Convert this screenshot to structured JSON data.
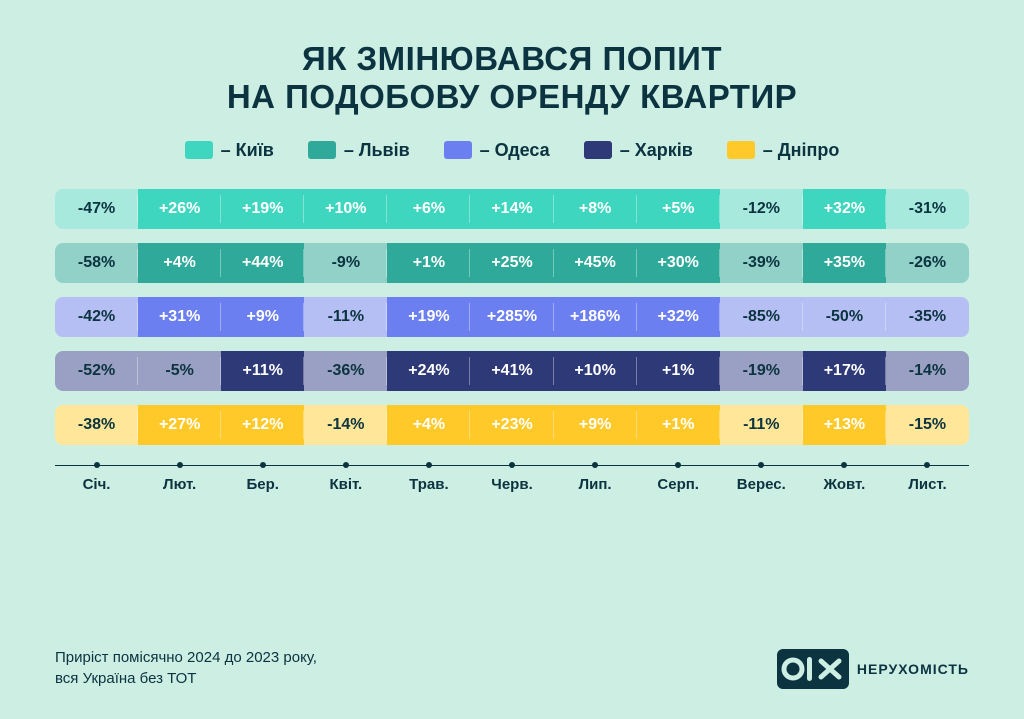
{
  "style": {
    "background_color": "#cdeee3",
    "text_color": "#0b3340",
    "title_fontsize": 33,
    "legend_fontsize": 18,
    "cell_fontsize": 16,
    "tick_fontsize": 15,
    "footnote_fontsize": 15,
    "brand_sub_fontsize": 14,
    "cell_text_color": "#ffffff",
    "light_cell_text_color": "#0b3340",
    "axis_color": "#0b3340"
  },
  "title_line1": "ЯК ЗМІНЮВАВСЯ ПОПИТ",
  "title_line2": "НА ПОДОБОВУ ОРЕНДУ КВАРТИР",
  "legend": [
    {
      "label": "– Київ",
      "color": "#3fd6c0",
      "light": "#a8e9dd"
    },
    {
      "label": "– Львів",
      "color": "#2fa99a",
      "light": "#91d1c7"
    },
    {
      "label": "– Одеса",
      "color": "#6b7ff0",
      "light": "#b6bff3"
    },
    {
      "label": "– Харків",
      "color": "#2e3a78",
      "light": "#9aa0c3"
    },
    {
      "label": "– Дніпро",
      "color": "#ffc929",
      "light": "#ffe698"
    }
  ],
  "months": [
    "Січ.",
    "Лют.",
    "Бер.",
    "Квіт.",
    "Трав.",
    "Черв.",
    "Лип.",
    "Серп.",
    "Верес.",
    "Жовт.",
    "Лист."
  ],
  "series": [
    {
      "name": "kyiv",
      "strong_color": "#3fd6c0",
      "light_color": "#a8e9dd",
      "values": [
        "-47%",
        "+26%",
        "+19%",
        "+10%",
        "+6%",
        "+14%",
        "+8%",
        "+5%",
        "-12%",
        "+32%",
        "-31%"
      ]
    },
    {
      "name": "lviv",
      "strong_color": "#2fa99a",
      "light_color": "#91d1c7",
      "values": [
        "-58%",
        "+4%",
        "+44%",
        "-9%",
        "+1%",
        "+25%",
        "+45%",
        "+30%",
        "-39%",
        "+35%",
        "-26%"
      ]
    },
    {
      "name": "odesa",
      "strong_color": "#6b7ff0",
      "light_color": "#b6bff3",
      "values": [
        "-42%",
        "+31%",
        "+9%",
        "-11%",
        "+19%",
        "+285%",
        "+186%",
        "+32%",
        "-85%",
        "-50%",
        "-35%"
      ]
    },
    {
      "name": "kharkiv",
      "strong_color": "#2e3a78",
      "light_color": "#9aa0c3",
      "values": [
        "-52%",
        "-5%",
        "+11%",
        "-36%",
        "+24%",
        "+41%",
        "+10%",
        "+1%",
        "-19%",
        "+17%",
        "-14%"
      ]
    },
    {
      "name": "dnipro",
      "strong_color": "#ffc929",
      "light_color": "#ffe698",
      "values": [
        "-38%",
        "+27%",
        "+12%",
        "-14%",
        "+4%",
        "+23%",
        "+9%",
        "+1%",
        "-11%",
        "+13%",
        "-15%"
      ]
    }
  ],
  "footnote_line1": "Приріст помісячно 2024 до 2023 року,",
  "footnote_line2": "вся Україна без ТОТ",
  "brand": {
    "logo_text": "OLX",
    "logo_bg": "#0b3340",
    "logo_fg": "#cdeee3",
    "sub": "НЕРУХОМІСТЬ"
  }
}
